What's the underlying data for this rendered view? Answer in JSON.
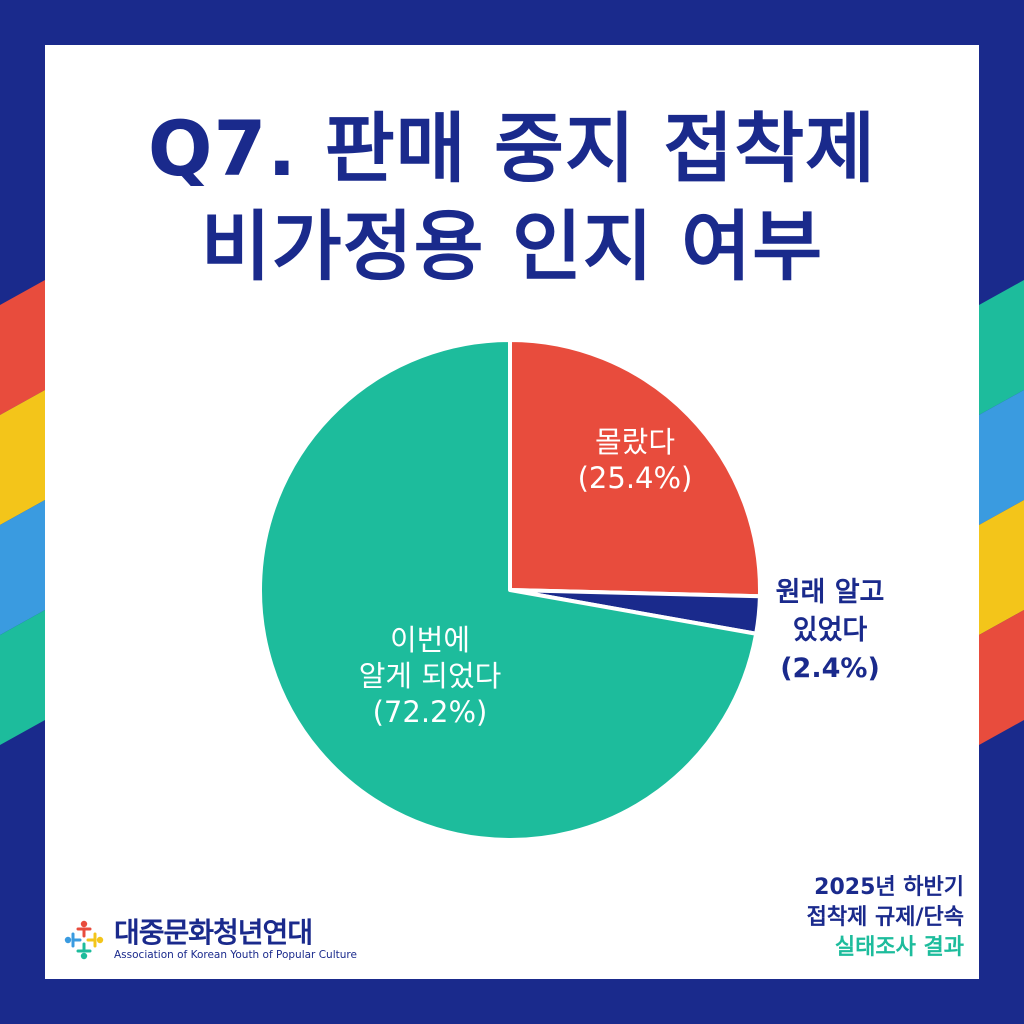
{
  "title_lines": [
    "Q7. 판매 중지 접착제",
    "비가정용 인지 여부"
  ],
  "colors": {
    "navy": "#1a2a8c",
    "red": "#e84c3d",
    "green": "#1dbc9c",
    "yellow": "#f3c51a",
    "blue": "#3a9be0"
  },
  "chart_data": {
    "type": "pie",
    "slices": [
      {
        "label_lines": [
          "몰랐다",
          "(25.4%)"
        ],
        "value": 25.4,
        "color": "#e84c3d"
      },
      {
        "label_lines": [
          "원래 알고",
          "있었다",
          "(2.4%)"
        ],
        "value": 2.4,
        "color": "#1a2a8c"
      },
      {
        "label_lines": [
          "이번에",
          "알게 되었다",
          "(72.2%)"
        ],
        "value": 72.2,
        "color": "#1dbc9c"
      }
    ],
    "start_angle_deg": 0,
    "direction": "clockwise"
  },
  "footer": {
    "lines": [
      "2025년 하반기",
      "접착제 규제/단속",
      "실태조사 결과"
    ]
  },
  "logo": {
    "name": "대중문화청년연대",
    "subtitle": "Association of Korean Youth of Popular Culture",
    "icon": "people-circle-icon"
  }
}
